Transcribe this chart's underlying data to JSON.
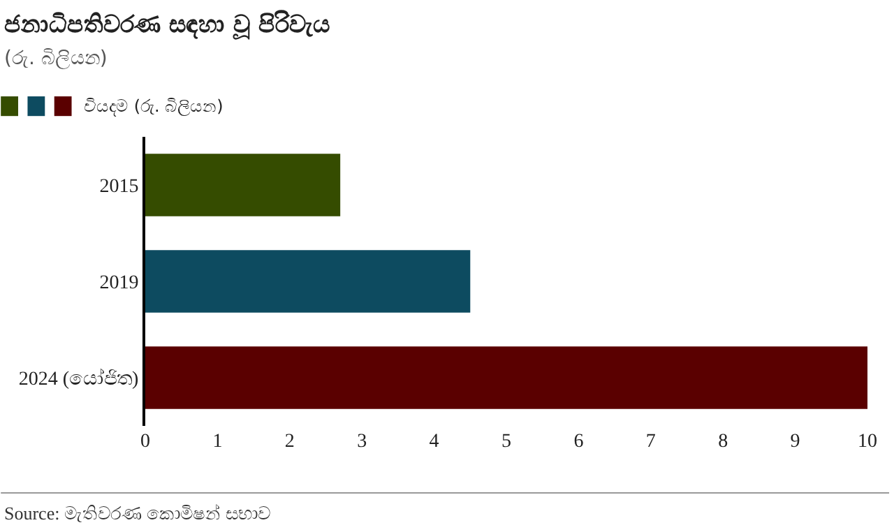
{
  "chart_data": {
    "type": "bar",
    "orientation": "horizontal",
    "title": "ජනාධිපතිවරණ සඳහා වූ පිරිවැය",
    "subtitle": "(රු. බිලියන)",
    "categories": [
      "2015",
      "2019",
      "2024 (යෝජිත)"
    ],
    "series": [
      {
        "name": "වියදම (රු. බිලියන)",
        "colors": [
          "#354c00",
          "#0d4b60",
          "#5a0000"
        ],
        "values": [
          2.7,
          4.5,
          10
        ]
      }
    ],
    "xlim": [
      0,
      10
    ],
    "xticks": [
      0,
      1,
      2,
      3,
      4,
      5,
      6,
      7,
      8,
      9,
      10
    ],
    "legend": "top left",
    "annotations": [
      "Source: මැතිවරණ කොමිෂන් සභාව"
    ]
  }
}
